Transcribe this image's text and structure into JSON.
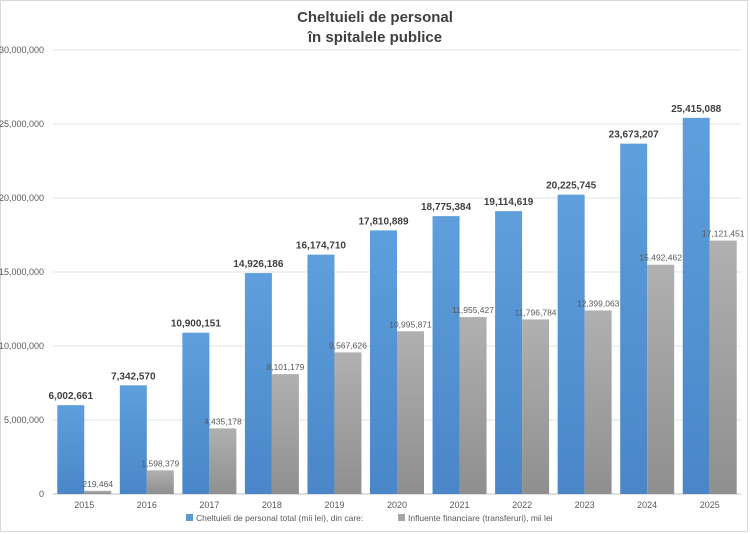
{
  "chart_data": {
    "type": "bar",
    "title": "Cheltuieli de personal",
    "subtitle": "în spitalele publice",
    "xlabel": "",
    "ylabel": "",
    "ylim": [
      0,
      30000000
    ],
    "yticks": [
      0,
      5000000,
      10000000,
      15000000,
      20000000,
      25000000,
      30000000
    ],
    "ytick_labels": [
      "0",
      "5,000,000",
      "10,000,000",
      "15,000,000",
      "20,000,000",
      "25,000,000",
      "30,000,000"
    ],
    "grid": true,
    "legend_position": "bottom",
    "categories": [
      "2015",
      "2016",
      "2017",
      "2018",
      "2019",
      "2020",
      "2021",
      "2022",
      "2023",
      "2024",
      "2025"
    ],
    "series": [
      {
        "name": "Cheltuieli de personal total (mii lei), din care:",
        "color": "#5b9bd5",
        "values": [
          6002661,
          7342570,
          10900151,
          14926186,
          16174710,
          17810889,
          18775384,
          19114619,
          20225745,
          23673207,
          25415088
        ],
        "labels": [
          "6,002,661",
          "7,342,570",
          "10,900,151",
          "14,926,186",
          "16,174,710",
          "17,810,889",
          "18,775,384",
          "19,114,619",
          "20,225,745",
          "23,673,207",
          "25,415,088"
        ]
      },
      {
        "name": "Influente financiare (transferuri), mii lei",
        "color": "#a5a5a5",
        "values": [
          219464,
          1598379,
          4435178,
          8101179,
          9567626,
          10995871,
          11955427,
          11796784,
          12399063,
          15492462,
          17121451
        ],
        "labels": [
          "219,464",
          "1,598,379",
          "4,435,178",
          "8,101,179",
          "9,567,626",
          "10,995,871",
          "11,955,427",
          "11,796,784",
          "12,399,063",
          "15,492,462",
          "17,121,451"
        ]
      }
    ]
  }
}
